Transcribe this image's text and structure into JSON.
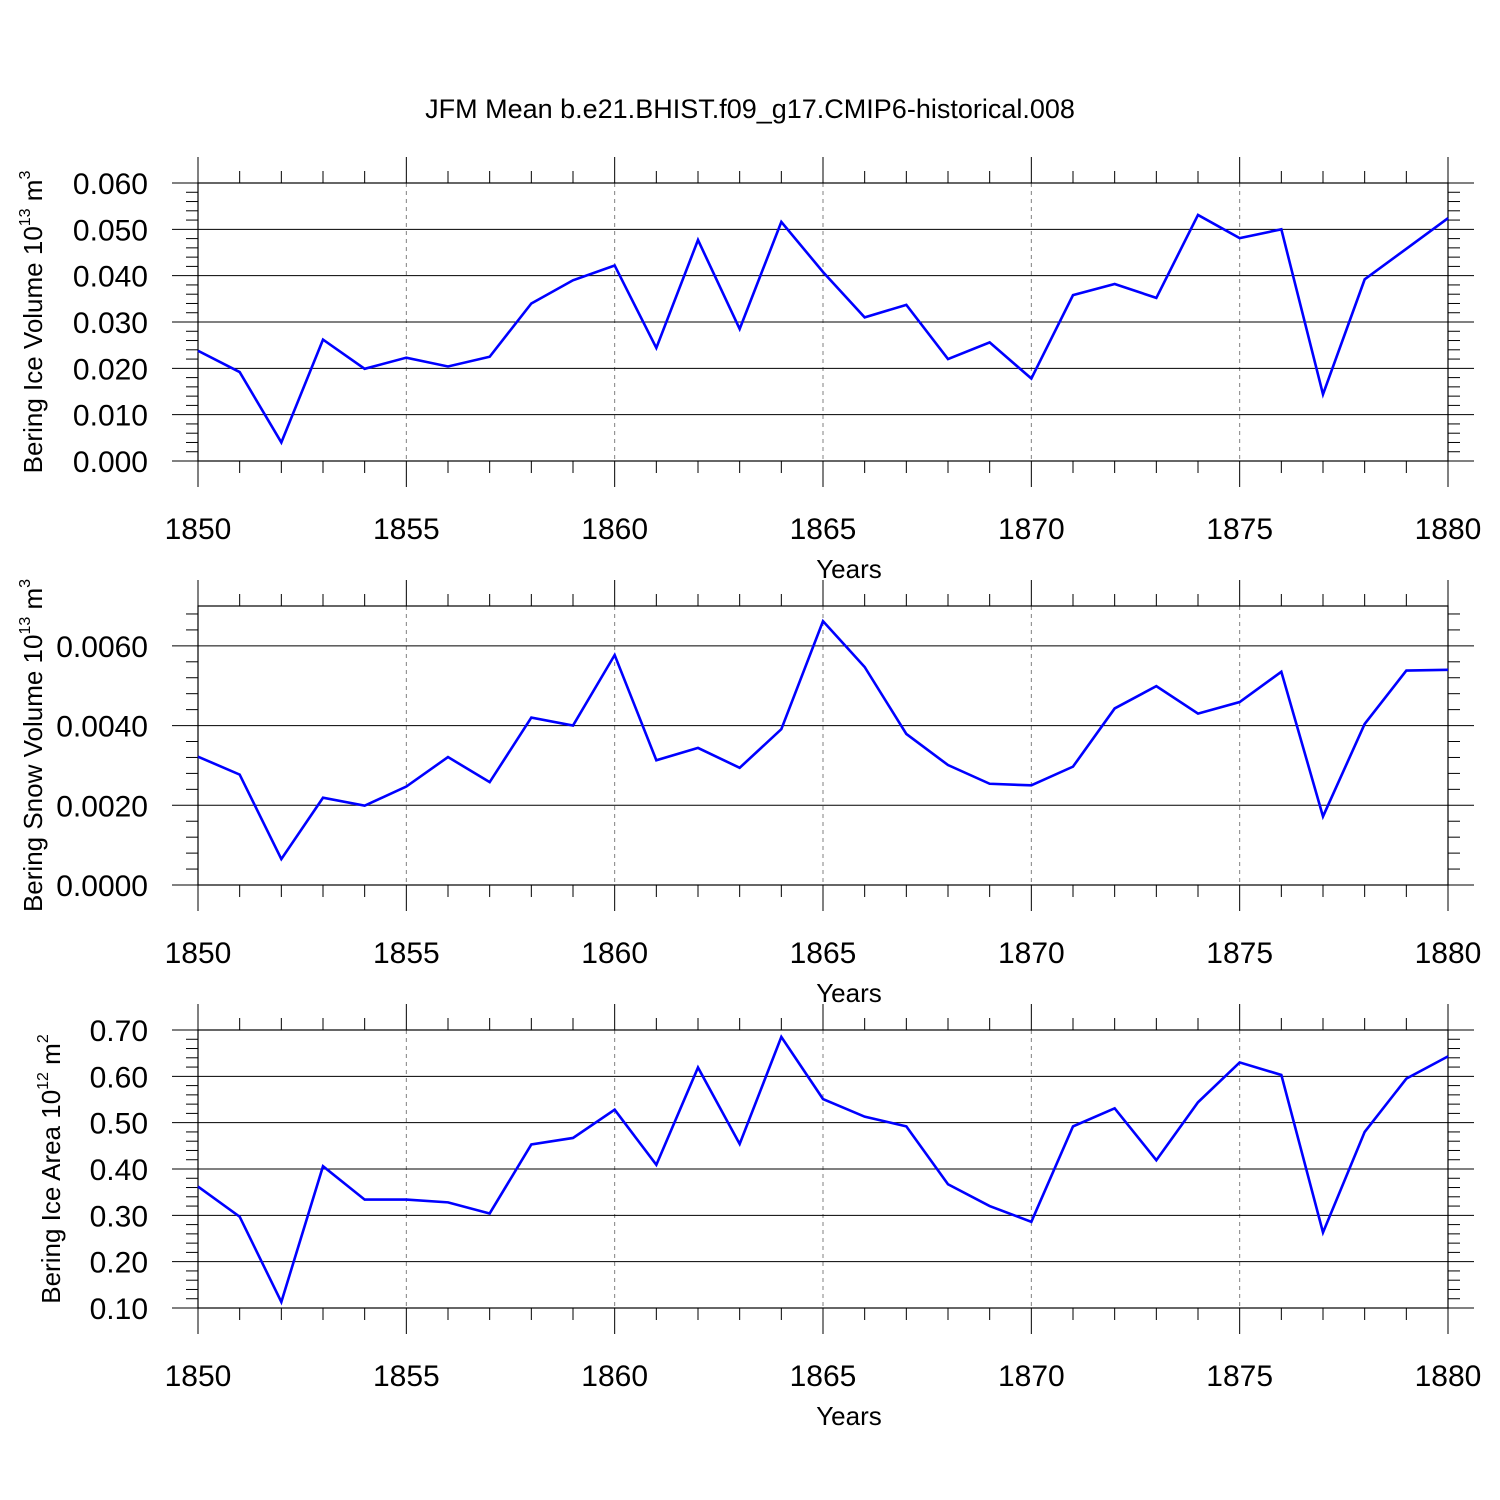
{
  "title": "JFM Mean b.e21.BHIST.f09_g17.CMIP6-historical.008",
  "colors": {
    "line": "#0000ff",
    "axis": "#000000",
    "grid": "#808080"
  },
  "chart_data": [
    {
      "type": "line",
      "xlabel": "Years",
      "ylabel": {
        "text": "Bering Ice Volume 10",
        "exp": "13",
        "unit": " m",
        "unit_exp": "3"
      },
      "xlim": [
        1850,
        1880
      ],
      "ylim": [
        0,
        0.06
      ],
      "x_ticks": [
        "1850",
        "1855",
        "1860",
        "1865",
        "1870",
        "1875",
        "1880"
      ],
      "y_ticks": [
        "0.000",
        "0.010",
        "0.020",
        "0.030",
        "0.040",
        "0.050",
        "0.060"
      ],
      "y_tick_values": [
        0,
        0.01,
        0.02,
        0.03,
        0.04,
        0.05,
        0.06
      ],
      "grid": "vertical dashed at major x ticks",
      "x": [
        1850,
        1851,
        1852,
        1853,
        1854,
        1855,
        1856,
        1857,
        1858,
        1859,
        1860,
        1861,
        1862,
        1863,
        1864,
        1865,
        1866,
        1867,
        1868,
        1869,
        1870,
        1871,
        1872,
        1873,
        1874,
        1875,
        1876,
        1877,
        1878,
        1879,
        1880
      ],
      "series": [
        {
          "values": [
            0.0238,
            0.0192,
            0.004,
            0.0262,
            0.0199,
            0.0223,
            0.0204,
            0.0225,
            0.034,
            0.039,
            0.0422,
            0.0244,
            0.0477,
            0.0285,
            0.0516,
            0.0408,
            0.031,
            0.0337,
            0.022,
            0.0256,
            0.0178,
            0.0358,
            0.0382,
            0.0352,
            0.0531,
            0.0481,
            0.05,
            0.0144,
            0.0392,
            0.0458,
            0.0524
          ]
        }
      ]
    },
    {
      "type": "line",
      "xlabel": "Years",
      "ylabel": {
        "text": "Bering Snow Volume 10",
        "exp": "13",
        "unit": " m",
        "unit_exp": "3"
      },
      "xlim": [
        1850,
        1880
      ],
      "ylim": [
        0,
        0.007
      ],
      "x_ticks": [
        "1850",
        "1855",
        "1860",
        "1865",
        "1870",
        "1875",
        "1880"
      ],
      "y_ticks": [
        "0.0000",
        "0.0020",
        "0.0040",
        "0.0060"
      ],
      "y_tick_values": [
        0,
        0.002,
        0.004,
        0.006
      ],
      "grid": "vertical dashed at major x ticks",
      "x": [
        1850,
        1851,
        1852,
        1853,
        1854,
        1855,
        1856,
        1857,
        1858,
        1859,
        1860,
        1861,
        1862,
        1863,
        1864,
        1865,
        1866,
        1867,
        1868,
        1869,
        1870,
        1871,
        1872,
        1873,
        1874,
        1875,
        1876,
        1877,
        1878,
        1879,
        1880
      ],
      "series": [
        {
          "values": [
            0.00322,
            0.00277,
            0.00065,
            0.00219,
            0.00199,
            0.00247,
            0.00321,
            0.00258,
            0.0042,
            0.004,
            0.00577,
            0.00313,
            0.00344,
            0.00294,
            0.00391,
            0.00662,
            0.00547,
            0.00379,
            0.00301,
            0.00254,
            0.0025,
            0.00297,
            0.00443,
            0.00499,
            0.0043,
            0.00459,
            0.00535,
            0.00172,
            0.00404,
            0.00538,
            0.0054
          ]
        }
      ]
    },
    {
      "type": "line",
      "xlabel": "Years",
      "ylabel": {
        "text": "Bering Ice Area 10",
        "exp": "12",
        "unit": " m",
        "unit_exp": "2"
      },
      "xlim": [
        1850,
        1880
      ],
      "ylim": [
        0.1,
        0.7
      ],
      "x_ticks": [
        "1850",
        "1855",
        "1860",
        "1865",
        "1870",
        "1875",
        "1880"
      ],
      "y_ticks": [
        "0.10",
        "0.20",
        "0.30",
        "0.40",
        "0.50",
        "0.60",
        "0.70"
      ],
      "y_tick_values": [
        0.1,
        0.2,
        0.3,
        0.4,
        0.5,
        0.6,
        0.7
      ],
      "grid": "vertical dashed at major x ticks",
      "x": [
        1850,
        1851,
        1852,
        1853,
        1854,
        1855,
        1856,
        1857,
        1858,
        1859,
        1860,
        1861,
        1862,
        1863,
        1864,
        1865,
        1866,
        1867,
        1868,
        1869,
        1870,
        1871,
        1872,
        1873,
        1874,
        1875,
        1876,
        1877,
        1878,
        1879,
        1880
      ],
      "series": [
        {
          "values": [
            0.362,
            0.297,
            0.113,
            0.406,
            0.334,
            0.334,
            0.328,
            0.304,
            0.453,
            0.467,
            0.528,
            0.409,
            0.619,
            0.454,
            0.685,
            0.551,
            0.513,
            0.492,
            0.367,
            0.32,
            0.286,
            0.492,
            0.531,
            0.419,
            0.544,
            0.63,
            0.603,
            0.263,
            0.48,
            0.595,
            0.643
          ]
        }
      ]
    }
  ]
}
